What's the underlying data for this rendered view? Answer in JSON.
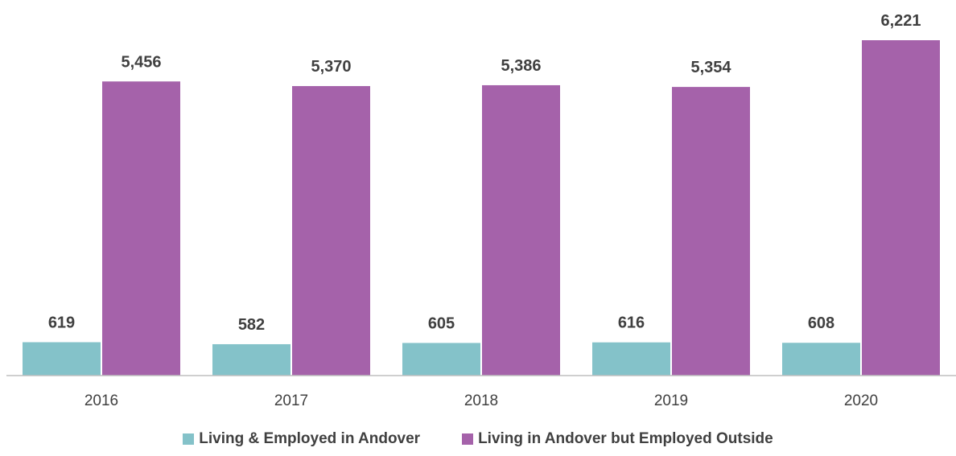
{
  "chart_data": {
    "type": "bar",
    "categories": [
      "2016",
      "2017",
      "2018",
      "2019",
      "2020"
    ],
    "series": [
      {
        "name": "Living & Employed in Andover",
        "values": [
          619,
          582,
          605,
          616,
          608
        ],
        "color": "#84C2C9"
      },
      {
        "name": "Living in Andover but Employed Outside",
        "values": [
          5456,
          5370,
          5386,
          5354,
          6221
        ],
        "color": "#A562AA"
      }
    ],
    "title": "",
    "xlabel": "",
    "ylabel": "",
    "ylim": [
      0,
      6221
    ],
    "grid": false,
    "legend": "bottom-center",
    "axis_color": "#BFBFBF",
    "text_color": "#404040"
  }
}
